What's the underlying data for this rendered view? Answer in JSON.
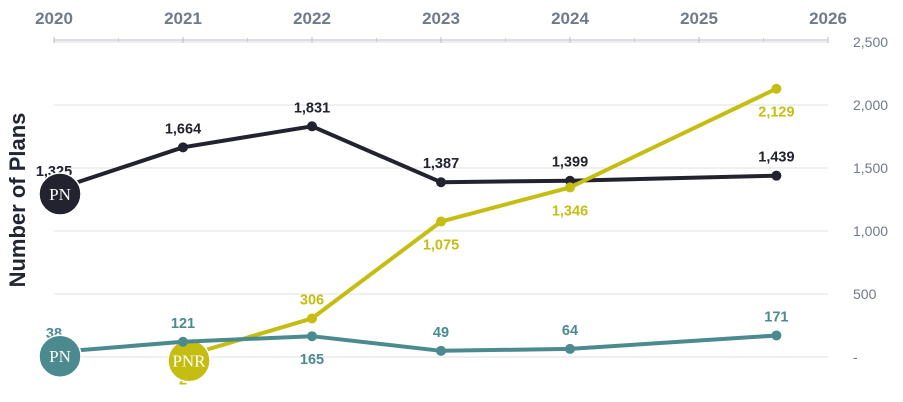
{
  "chart_data": {
    "type": "line",
    "title": "",
    "xlabel": "",
    "ylabel": "Number of Plans",
    "x_ticks": [
      "2020",
      "2021",
      "2022",
      "2023",
      "2024",
      "2025",
      "2026"
    ],
    "xlim": [
      2020,
      2026
    ],
    "ylim": [
      0,
      2500
    ],
    "y_ticks": [
      0,
      500,
      1000,
      1500,
      2000,
      2500
    ],
    "y_tick_labels": [
      "-",
      "500",
      "1,000",
      "1,500",
      "2,000",
      "2,500"
    ],
    "y_axis_side": "right",
    "x_axis_side": "top",
    "grid": true,
    "series": [
      {
        "badge": "PN",
        "color": "#22232f",
        "badge_color": "#22232f",
        "x": [
          2020,
          2021,
          2022,
          2023,
          2024,
          2025.6
        ],
        "values": [
          1325,
          1664,
          1831,
          1387,
          1399,
          1439
        ],
        "labels": [
          "1,325",
          "1,664",
          "1,831",
          "1,387",
          "1,399",
          "1,439"
        ],
        "label_position": [
          "above",
          "above",
          "above",
          "above",
          "above",
          "above"
        ]
      },
      {
        "badge": "PNR",
        "color": "#c5bd12",
        "badge_color": "#c5bd12",
        "x": [
          2021,
          2022,
          2023,
          2024,
          2025.6
        ],
        "values": [
          2,
          306,
          1075,
          1346,
          2129
        ],
        "labels": [
          "2",
          "306",
          "1,075",
          "1,346",
          "2,129"
        ],
        "label_position": [
          "below",
          "above",
          "below",
          "below",
          "below"
        ]
      },
      {
        "badge": "PN",
        "color": "#4b8a8f",
        "badge_color": "#4b8a8f",
        "x": [
          2020,
          2021,
          2022,
          2023,
          2024,
          2025.6
        ],
        "values": [
          38,
          121,
          165,
          49,
          64,
          171
        ],
        "labels": [
          "38",
          "121",
          "165",
          "49",
          "64",
          "171"
        ],
        "label_position": [
          "above",
          "above",
          "below",
          "above",
          "above",
          "above"
        ]
      }
    ]
  }
}
